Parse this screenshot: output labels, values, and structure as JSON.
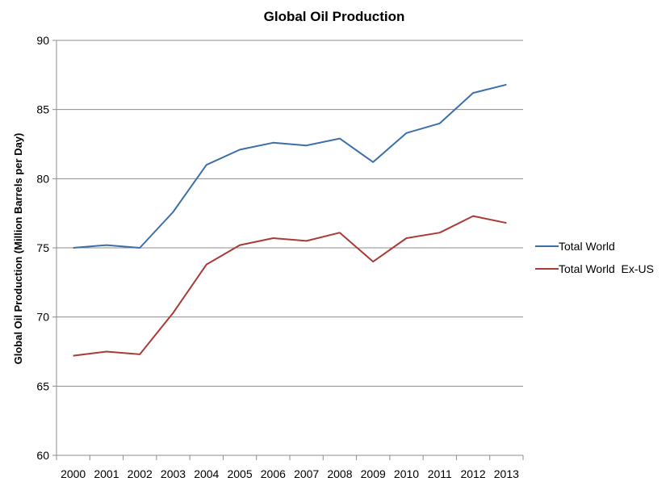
{
  "chart_data": {
    "type": "line",
    "title": "Global Oil Production",
    "xlabel": "",
    "ylabel": "Global Oil Production (Million Barrels per Day)",
    "ylim": [
      60,
      90
    ],
    "yticks": [
      60,
      65,
      70,
      75,
      80,
      85,
      90
    ],
    "grid": true,
    "legend_position": "right",
    "categories": [
      "2000",
      "2001",
      "2002",
      "2003",
      "2004",
      "2005",
      "2006",
      "2007",
      "2008",
      "2009",
      "2010",
      "2011",
      "2012",
      "2013"
    ],
    "series": [
      {
        "name": "Total World",
        "color": "#3c6fa8",
        "values": [
          75.0,
          75.2,
          75.0,
          77.6,
          81.0,
          82.1,
          82.6,
          82.4,
          82.9,
          81.2,
          83.3,
          84.0,
          86.2,
          86.8
        ]
      },
      {
        "name": "Total World  Ex-US",
        "color": "#a93b37",
        "values": [
          67.2,
          67.5,
          67.3,
          70.3,
          73.8,
          75.2,
          75.7,
          75.5,
          76.1,
          74.0,
          75.7,
          76.1,
          77.3,
          76.8
        ]
      }
    ]
  }
}
